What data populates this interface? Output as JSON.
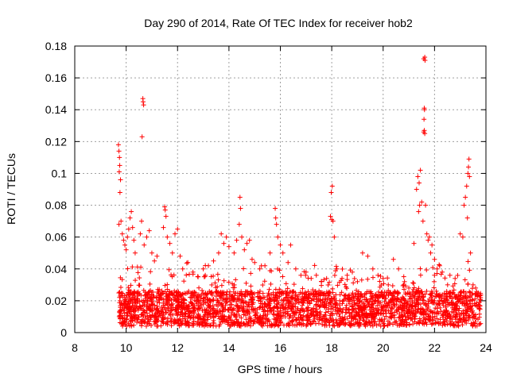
{
  "chart_data": {
    "type": "scatter",
    "title": "Day 290 of 2014, Rate Of TEC Index for receiver hob2",
    "xlabel": "GPS time / hours",
    "ylabel": "ROTI / TECUs",
    "xlim": [
      8,
      24
    ],
    "ylim": [
      0,
      0.18
    ],
    "grid": true,
    "marker": "plus",
    "series_color": "#ff0000",
    "x_ticks": [
      8,
      10,
      12,
      14,
      16,
      18,
      20,
      22,
      24
    ],
    "x_tick_labels": [
      "8",
      "10",
      "12",
      "14",
      "16",
      "18",
      "20",
      "22",
      "24"
    ],
    "y_ticks": [
      0,
      0.02,
      0.04,
      0.06,
      0.08,
      0.1,
      0.12,
      0.14,
      0.16,
      0.18
    ],
    "y_tick_labels": [
      "0",
      "0.02",
      "0.04",
      "0.06",
      "0.08",
      "0.1",
      "0.12",
      "0.14",
      "0.16",
      "0.18"
    ],
    "data_x_range": [
      9.7,
      23.8
    ],
    "points": [
      [
        9.7,
        0.118
      ],
      [
        9.72,
        0.114
      ],
      [
        9.74,
        0.11
      ],
      [
        9.75,
        0.105
      ],
      [
        9.73,
        0.101
      ],
      [
        9.78,
        0.096
      ],
      [
        9.76,
        0.088
      ],
      [
        9.72,
        0.068
      ],
      [
        9.8,
        0.07
      ],
      [
        9.85,
        0.062
      ],
      [
        9.9,
        0.058
      ],
      [
        9.95,
        0.055
      ],
      [
        10.0,
        0.052
      ],
      [
        10.05,
        0.06
      ],
      [
        10.1,
        0.065
      ],
      [
        10.15,
        0.072
      ],
      [
        10.2,
        0.076
      ],
      [
        10.25,
        0.066
      ],
      [
        10.3,
        0.058
      ],
      [
        10.35,
        0.05
      ],
      [
        10.65,
        0.147
      ],
      [
        10.66,
        0.145
      ],
      [
        10.68,
        0.143
      ],
      [
        10.62,
        0.123
      ],
      [
        10.6,
        0.07
      ],
      [
        10.55,
        0.062
      ],
      [
        10.7,
        0.055
      ],
      [
        10.8,
        0.06
      ],
      [
        10.9,
        0.064
      ],
      [
        11.0,
        0.05
      ],
      [
        11.1,
        0.045
      ],
      [
        11.2,
        0.048
      ],
      [
        11.5,
        0.079
      ],
      [
        11.52,
        0.077
      ],
      [
        11.55,
        0.073
      ],
      [
        11.45,
        0.066
      ],
      [
        11.6,
        0.06
      ],
      [
        11.7,
        0.056
      ],
      [
        11.8,
        0.05
      ],
      [
        11.9,
        0.062
      ],
      [
        12.0,
        0.065
      ],
      [
        12.1,
        0.048
      ],
      [
        12.2,
        0.04
      ],
      [
        12.4,
        0.044
      ],
      [
        12.6,
        0.038
      ],
      [
        12.8,
        0.035
      ],
      [
        13.0,
        0.04
      ],
      [
        13.2,
        0.042
      ],
      [
        13.4,
        0.045
      ],
      [
        13.6,
        0.05
      ],
      [
        13.7,
        0.062
      ],
      [
        13.8,
        0.056
      ],
      [
        13.9,
        0.06
      ],
      [
        14.0,
        0.054
      ],
      [
        14.2,
        0.05
      ],
      [
        14.3,
        0.058
      ],
      [
        14.45,
        0.078
      ],
      [
        14.43,
        0.085
      ],
      [
        14.4,
        0.068
      ],
      [
        14.5,
        0.06
      ],
      [
        14.6,
        0.052
      ],
      [
        14.7,
        0.056
      ],
      [
        14.8,
        0.058
      ],
      [
        14.9,
        0.046
      ],
      [
        15.0,
        0.044
      ],
      [
        15.2,
        0.04
      ],
      [
        15.4,
        0.042
      ],
      [
        15.6,
        0.05
      ],
      [
        15.8,
        0.078
      ],
      [
        15.82,
        0.072
      ],
      [
        15.85,
        0.068
      ],
      [
        15.9,
        0.06
      ],
      [
        16.0,
        0.055
      ],
      [
        16.1,
        0.05
      ],
      [
        16.3,
        0.044
      ],
      [
        16.4,
        0.055
      ],
      [
        16.6,
        0.04
      ],
      [
        16.8,
        0.036
      ],
      [
        17.0,
        0.038
      ],
      [
        17.2,
        0.034
      ],
      [
        17.4,
        0.036
      ],
      [
        17.6,
        0.032
      ],
      [
        17.8,
        0.034
      ],
      [
        17.95,
        0.073
      ],
      [
        18.0,
        0.071
      ],
      [
        17.98,
        0.088
      ],
      [
        18.02,
        0.092
      ],
      [
        18.05,
        0.07
      ],
      [
        18.1,
        0.06
      ],
      [
        18.2,
        0.04
      ],
      [
        18.4,
        0.034
      ],
      [
        18.6,
        0.036
      ],
      [
        18.8,
        0.038
      ],
      [
        19.0,
        0.032
      ],
      [
        19.2,
        0.05
      ],
      [
        19.4,
        0.048
      ],
      [
        19.6,
        0.04
      ],
      [
        19.8,
        0.036
      ],
      [
        20.0,
        0.034
      ],
      [
        20.2,
        0.03
      ],
      [
        20.4,
        0.046
      ],
      [
        20.6,
        0.04
      ],
      [
        20.8,
        0.03
      ],
      [
        21.0,
        0.028
      ],
      [
        21.2,
        0.056
      ],
      [
        21.3,
        0.09
      ],
      [
        21.35,
        0.098
      ],
      [
        21.4,
        0.094
      ],
      [
        21.45,
        0.102
      ],
      [
        21.38,
        0.076
      ],
      [
        21.42,
        0.08
      ],
      [
        21.5,
        0.082
      ],
      [
        21.55,
        0.07
      ],
      [
        21.58,
        0.126
      ],
      [
        21.6,
        0.127
      ],
      [
        21.62,
        0.125
      ],
      [
        21.59,
        0.134
      ],
      [
        21.61,
        0.14
      ],
      [
        21.6,
        0.141
      ],
      [
        21.58,
        0.172
      ],
      [
        21.62,
        0.173
      ],
      [
        21.63,
        0.171
      ],
      [
        21.65,
        0.08
      ],
      [
        21.7,
        0.062
      ],
      [
        21.75,
        0.058
      ],
      [
        21.8,
        0.06
      ],
      [
        21.85,
        0.05
      ],
      [
        21.9,
        0.055
      ],
      [
        22.0,
        0.046
      ],
      [
        22.1,
        0.04
      ],
      [
        22.2,
        0.042
      ],
      [
        22.3,
        0.038
      ],
      [
        22.6,
        0.036
      ],
      [
        22.8,
        0.034
      ],
      [
        23.0,
        0.062
      ],
      [
        23.1,
        0.06
      ],
      [
        23.15,
        0.08
      ],
      [
        23.2,
        0.085
      ],
      [
        23.25,
        0.092
      ],
      [
        23.3,
        0.1
      ],
      [
        23.32,
        0.104
      ],
      [
        23.34,
        0.109
      ],
      [
        23.36,
        0.098
      ],
      [
        23.28,
        0.072
      ],
      [
        23.4,
        0.05
      ],
      [
        23.5,
        0.03
      ],
      [
        23.6,
        0.028
      ],
      [
        23.7,
        0.025
      ],
      [
        23.8,
        0.02
      ]
    ]
  }
}
